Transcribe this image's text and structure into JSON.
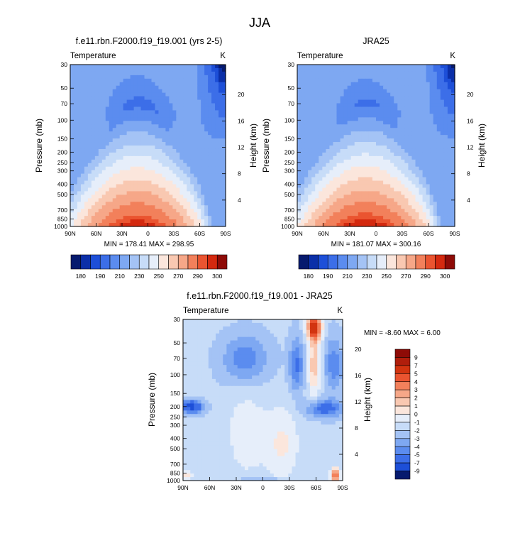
{
  "super_title": "JJA",
  "chart_data": [
    {
      "type": "heatmap",
      "title": "f.e11.rbn.F2000.f19_f19.001 (yrs 2-5)",
      "field_label": "Temperature",
      "units": "K",
      "ylabel": "Pressure (mb)",
      "y2label": "Height (km)",
      "x_ticks": [
        "90N",
        "60N",
        "30N",
        "0",
        "30S",
        "60S",
        "90S"
      ],
      "y_ticks": [
        "30",
        "50",
        "70",
        "100",
        "150",
        "200",
        "250",
        "300",
        "400",
        "500",
        "700",
        "850",
        "1000"
      ],
      "y2_ticks": [
        "20",
        "16",
        "12",
        "8",
        "4"
      ],
      "stats_text": "MIN = 178.41   MAX = 298.95",
      "min": 178.41,
      "max": 298.95,
      "field": "absolute",
      "colorbar_labels": [
        "180",
        "190",
        "210",
        "230",
        "250",
        "270",
        "290",
        "300"
      ],
      "colorbar_levels": [
        180,
        185,
        190,
        200,
        210,
        220,
        230,
        240,
        250,
        260,
        270,
        280,
        290,
        295,
        300
      ]
    },
    {
      "type": "heatmap",
      "title": "JRA25",
      "field_label": "Temperature",
      "units": "K",
      "ylabel": "Pressure (mb)",
      "y2label": "Height (km)",
      "x_ticks": [
        "90N",
        "60N",
        "30N",
        "0",
        "30S",
        "60S",
        "90S"
      ],
      "y_ticks": [
        "30",
        "50",
        "70",
        "100",
        "150",
        "200",
        "250",
        "300",
        "400",
        "500",
        "700",
        "850",
        "1000"
      ],
      "y2_ticks": [
        "20",
        "16",
        "12",
        "8",
        "4"
      ],
      "stats_text": "MIN = 181.07   MAX = 300.16",
      "min": 181.07,
      "max": 300.16,
      "field": "absolute",
      "colorbar_labels": [
        "180",
        "190",
        "210",
        "230",
        "250",
        "270",
        "290",
        "300"
      ],
      "colorbar_levels": [
        180,
        185,
        190,
        200,
        210,
        220,
        230,
        240,
        250,
        260,
        270,
        280,
        290,
        295,
        300
      ]
    },
    {
      "type": "heatmap",
      "title": "f.e11.rbn.F2000.f19_f19.001 - JRA25",
      "field_label": "Temperature",
      "units": "K",
      "ylabel": "Pressure (mb)",
      "y2label": "Height (km)",
      "x_ticks": [
        "90N",
        "60N",
        "30N",
        "0",
        "30S",
        "60S",
        "90S"
      ],
      "y_ticks": [
        "30",
        "50",
        "70",
        "100",
        "150",
        "200",
        "250",
        "300",
        "400",
        "500",
        "700",
        "850",
        "1000"
      ],
      "y2_ticks": [
        "20",
        "16",
        "12",
        "8",
        "4"
      ],
      "stats_text": "MIN =  -8.60   MAX =   6.00",
      "min": -8.6,
      "max": 6.0,
      "field": "difference",
      "colorbar_labels": [
        "9",
        "7",
        "5",
        "4",
        "3",
        "2",
        "1",
        "0",
        "-1",
        "-2",
        "-3",
        "-4",
        "-5",
        "-7",
        "-9"
      ],
      "colorbar_levels": [
        9,
        7,
        5,
        4,
        3,
        2,
        1,
        0,
        -1,
        -2,
        -3,
        -4,
        -5,
        -7,
        -9
      ]
    }
  ],
  "palettes": {
    "absolute": [
      "#061a6e",
      "#0b2fa8",
      "#1d4fd8",
      "#3c6ee8",
      "#5b8cef",
      "#7ea8f2",
      "#a4c3f5",
      "#c7dcf8",
      "#e6eefa",
      "#fbe6dc",
      "#f9c8b1",
      "#f6a788",
      "#f2805b",
      "#ea5430",
      "#d4290f",
      "#8e0b07"
    ],
    "difference": [
      "#8e0b07",
      "#b01e0c",
      "#d23410",
      "#ea5430",
      "#f2805b",
      "#f6a788",
      "#f9c8b1",
      "#fbe6dc",
      "#e6eefa",
      "#c7dcf8",
      "#a4c3f5",
      "#7ea8f2",
      "#5b8cef",
      "#3c6ee8",
      "#1d4fd8",
      "#061a6e"
    ]
  }
}
